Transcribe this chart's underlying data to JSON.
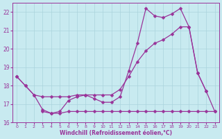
{
  "background_color": "#c8eaf0",
  "grid_color": "#aad4dc",
  "line_color": "#993399",
  "xlabel": "Windchill (Refroidissement éolien,°C)",
  "xlabel_color": "#993399",
  "tick_color": "#993399",
  "ylim": [
    16,
    22.5
  ],
  "xlim": [
    -0.5,
    23.5
  ],
  "yticks": [
    16,
    17,
    18,
    19,
    20,
    21,
    22
  ],
  "xticks": [
    0,
    1,
    2,
    3,
    4,
    5,
    6,
    7,
    8,
    9,
    10,
    11,
    12,
    13,
    14,
    15,
    16,
    17,
    18,
    19,
    20,
    21,
    22,
    23
  ],
  "series1_x": [
    0,
    1,
    2,
    3,
    4,
    5,
    6,
    7,
    8,
    9,
    10,
    11,
    12,
    13,
    14,
    15,
    16,
    17,
    18,
    19,
    20,
    21,
    22,
    23
  ],
  "series1_y": [
    18.5,
    18.0,
    17.5,
    17.4,
    17.4,
    17.4,
    17.4,
    17.5,
    17.5,
    17.5,
    17.5,
    17.5,
    17.8,
    18.5,
    19.3,
    19.9,
    20.3,
    20.5,
    20.8,
    21.2,
    21.2,
    18.7,
    17.7,
    16.6
  ],
  "series2_x": [
    0,
    1,
    2,
    3,
    4,
    5,
    6,
    7,
    8,
    9,
    10,
    11,
    12,
    13,
    14,
    15,
    16,
    17,
    18,
    19,
    20,
    21,
    22,
    23
  ],
  "series2_y": [
    18.5,
    18.0,
    17.5,
    16.7,
    16.5,
    16.6,
    17.2,
    17.4,
    17.5,
    17.3,
    17.1,
    17.1,
    17.4,
    18.8,
    20.3,
    22.2,
    21.8,
    21.7,
    21.9,
    22.2,
    21.2,
    18.7,
    17.7,
    null
  ],
  "series3_x": [
    3,
    4,
    5,
    6,
    7,
    8,
    9,
    10,
    11,
    12,
    13,
    14,
    15,
    16,
    17,
    18,
    19,
    20,
    21,
    22,
    23
  ],
  "series3_y": [
    16.6,
    16.5,
    16.5,
    16.6,
    16.6,
    16.6,
    16.6,
    16.6,
    16.6,
    16.6,
    16.6,
    16.6,
    16.6,
    16.6,
    16.6,
    16.6,
    16.6,
    16.6,
    16.6,
    16.6,
    16.6
  ]
}
